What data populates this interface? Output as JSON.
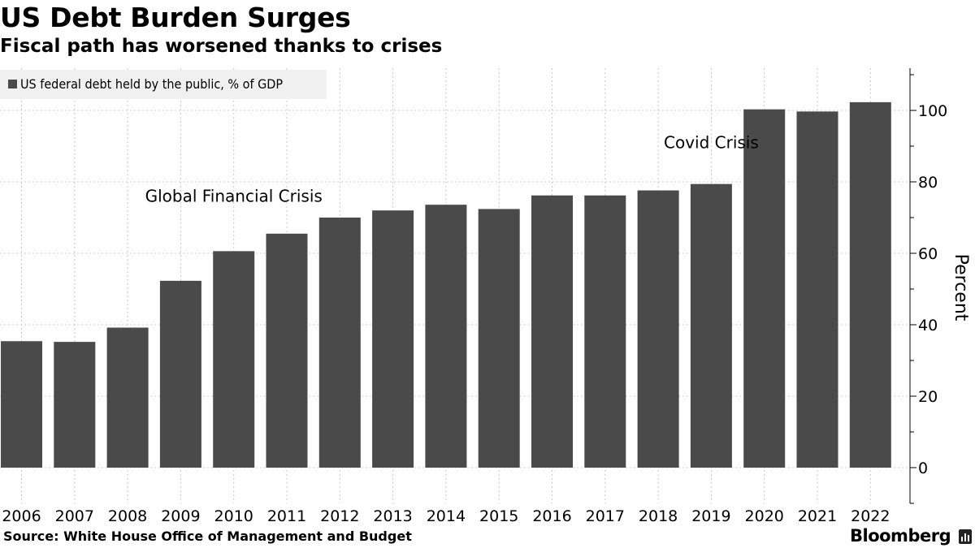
{
  "header": {
    "title": "US Debt Burden Surges",
    "subtitle": "Fiscal path has worsened thanks to crises"
  },
  "footer": {
    "source": "Source: White House Office of Management and Budget",
    "brand": "Bloomberg",
    "brand_icon": "bloomberg-bars-icon"
  },
  "colors": {
    "bar": "#4a4a4a",
    "legend_bg": "#f0f0f0",
    "grid": "#c8c8c8"
  },
  "chart_data": {
    "type": "bar",
    "title": "US Debt Burden Surges",
    "subtitle": "Fiscal path has worsened thanks to crises",
    "xlabel": "",
    "ylabel": "Percent",
    "y_axis_side": "right",
    "ylim": [
      -10,
      112
    ],
    "yticks": [
      0,
      20,
      40,
      60,
      80,
      100
    ],
    "grid": true,
    "legend_position": "top-left",
    "categories": [
      "2006",
      "2007",
      "2008",
      "2009",
      "2010",
      "2011",
      "2012",
      "2013",
      "2014",
      "2015",
      "2016",
      "2017",
      "2018",
      "2019",
      "2020",
      "2021",
      "2022"
    ],
    "series": [
      {
        "name": "US federal debt held by the public, % of GDP",
        "values": [
          35.4,
          35.2,
          39.2,
          52.3,
          60.6,
          65.5,
          70.0,
          72.0,
          73.6,
          72.4,
          76.2,
          76.2,
          77.6,
          79.4,
          100.3,
          99.7,
          102.3
        ]
      }
    ],
    "annotations": [
      {
        "text": "Global Financial Crisis",
        "x": "2010",
        "y": 76
      },
      {
        "text": "Covid Crisis",
        "x": "2019",
        "y": 91
      }
    ]
  }
}
